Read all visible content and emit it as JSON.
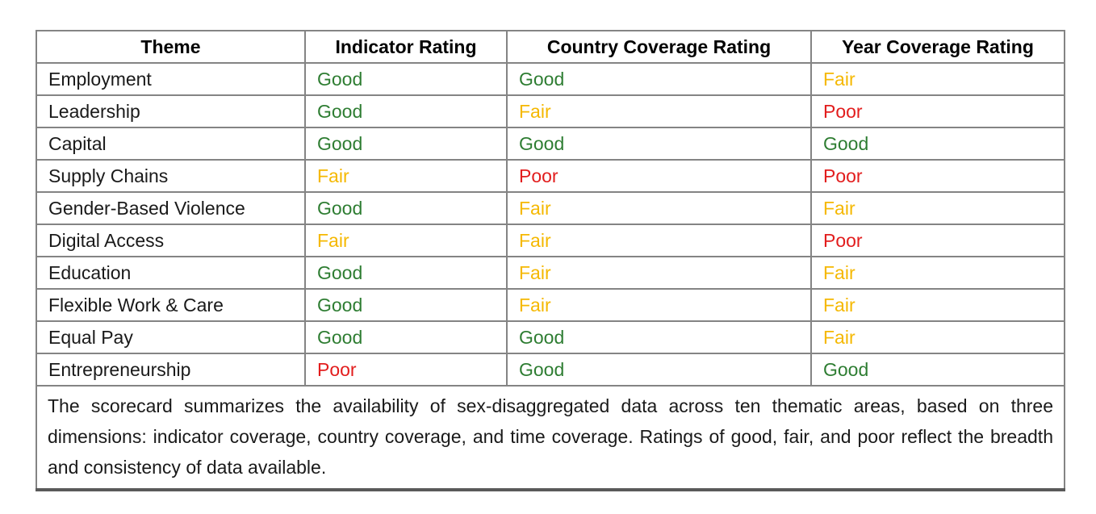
{
  "page": {
    "background": "#ffffff"
  },
  "table": {
    "columns": [
      "Theme",
      "Indicator Rating",
      "Country Coverage Rating",
      "Year Coverage Rating"
    ],
    "rows": [
      {
        "theme": "Employment",
        "ratings": [
          "Good",
          "Good",
          "Fair"
        ]
      },
      {
        "theme": "Leadership",
        "ratings": [
          "Good",
          "Fair",
          "Poor"
        ]
      },
      {
        "theme": "Capital",
        "ratings": [
          "Good",
          "Good",
          "Good"
        ]
      },
      {
        "theme": "Supply Chains",
        "ratings": [
          "Fair",
          "Poor",
          "Poor"
        ]
      },
      {
        "theme": "Gender-Based Violence",
        "ratings": [
          "Good",
          "Fair",
          "Fair"
        ]
      },
      {
        "theme": "Digital Access",
        "ratings": [
          "Fair",
          "Fair",
          "Poor"
        ]
      },
      {
        "theme": "Education",
        "ratings": [
          "Good",
          "Fair",
          "Fair"
        ]
      },
      {
        "theme": "Flexible Work & Care",
        "ratings": [
          "Good",
          "Fair",
          "Fair"
        ]
      },
      {
        "theme": "Equal Pay",
        "ratings": [
          "Good",
          "Good",
          "Fair"
        ]
      },
      {
        "theme": "Entrepreneurship",
        "ratings": [
          "Poor",
          "Good",
          "Good"
        ]
      }
    ],
    "rating_colors": {
      "Good": "#2e7d32",
      "Fair": "#f5b800",
      "Poor": "#e21d1d"
    },
    "border_colors": {
      "grid": "#848484",
      "rule": "#5a5a5a"
    },
    "note": "The scorecard summarizes the availability of sex-disaggregated data across ten thematic areas, based on three dimensions: indicator coverage, country coverage, and time coverage. Ratings of good, fair, and poor reflect the breadth and consistency of data available."
  }
}
